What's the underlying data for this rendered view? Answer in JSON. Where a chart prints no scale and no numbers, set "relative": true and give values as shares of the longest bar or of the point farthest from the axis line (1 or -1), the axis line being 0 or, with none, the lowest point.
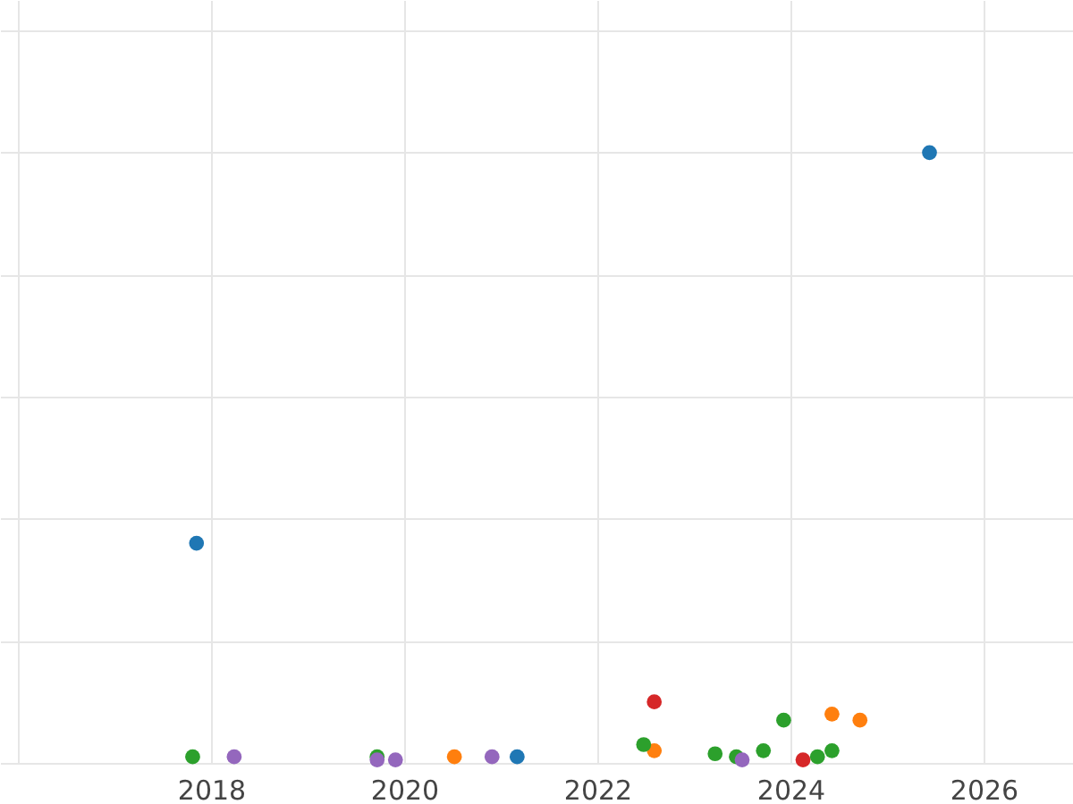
{
  "chart_data": {
    "type": "scatter",
    "relative": true,
    "grid": true,
    "marker": "circle",
    "xlim": [
      2015.815,
      2026.926
    ],
    "xticks": [
      {
        "value": 2016,
        "label": null
      },
      2018,
      2020,
      2022,
      2024,
      2026
    ],
    "series": [
      {
        "color": "#1f77b4",
        "x": [
          2017.85,
          2021.17,
          2025.44
        ],
        "values": [
          0.36,
          0.01,
          1
        ]
      },
      {
        "color": "#ff7f0e",
        "x": [
          2020.52,
          2022.59,
          2024.43,
          2024.72
        ],
        "values": [
          0.01,
          0.02,
          0.08,
          0.07
        ]
      },
      {
        "color": "#2ca02c",
        "x": [
          2017.81,
          2019.72,
          2022.48,
          2023.22,
          2023.44,
          2023.72,
          2023.93,
          2024.28,
          2024.43
        ],
        "values": [
          0.01,
          0.01,
          0.03,
          0.015,
          0.01,
          0.02,
          0.07,
          0.01,
          0.02
        ]
      },
      {
        "color": "#d62728",
        "x": [
          2022.59,
          2024.13
        ],
        "values": [
          0.1,
          0.005
        ]
      },
      {
        "color": "#9467bd",
        "x": [
          2018.24,
          2019.72,
          2019.91,
          2020.91,
          2023.5
        ],
        "values": [
          0.01,
          0.005,
          0.005,
          0.01,
          0.005
        ]
      }
    ]
  }
}
